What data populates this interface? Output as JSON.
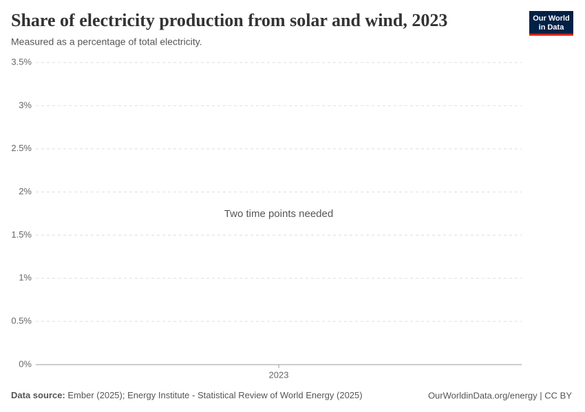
{
  "chart_data": {
    "type": "line",
    "title": "Share of electricity production from solar and wind, 2023",
    "subtitle": "Measured as a percentage of total electricity.",
    "annotation": "Two time points needed",
    "categories": [
      "2023"
    ],
    "ylim": [
      0,
      3.5
    ],
    "yticks": [
      {
        "value": 0,
        "label": "0%"
      },
      {
        "value": 0.5,
        "label": "0.5%"
      },
      {
        "value": 1,
        "label": "1%"
      },
      {
        "value": 1.5,
        "label": "1.5%"
      },
      {
        "value": 2,
        "label": "2%"
      },
      {
        "value": 2.5,
        "label": "2.5%"
      },
      {
        "value": 3,
        "label": "3%"
      },
      {
        "value": 3.5,
        "label": "3.5%"
      }
    ],
    "grid": true
  },
  "logo": [
    "Our World",
    "in Data"
  ],
  "footer": {
    "source_label": "Data source:",
    "source": "Ember (2025); Energy Institute - Statistical Review of World Energy (2025)",
    "credit": "OurWorldinData.org/energy | CC BY"
  }
}
